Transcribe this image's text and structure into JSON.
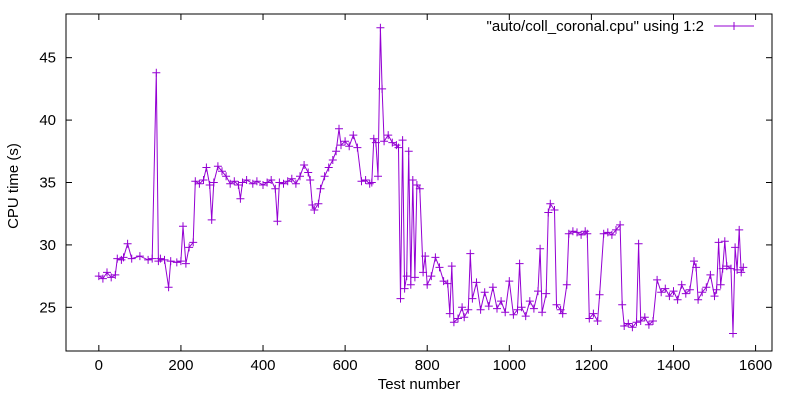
{
  "chart_data": {
    "type": "line",
    "xlabel": "Test number",
    "ylabel": "CPU time (s)",
    "xlim": [
      -80,
      1640
    ],
    "ylim": [
      21.5,
      48.5
    ],
    "xticks": [
      0,
      200,
      400,
      600,
      800,
      1000,
      1200,
      1400,
      1600
    ],
    "yticks": [
      25,
      30,
      35,
      40,
      45
    ],
    "legend_position": "top-right",
    "grid": false,
    "series": [
      {
        "name": "\"auto/coll_coronal.cpu\" using 1:2",
        "color": "#9400d3",
        "marker": "+",
        "points": [
          [
            0,
            27.5
          ],
          [
            10,
            27.3
          ],
          [
            20,
            27.8
          ],
          [
            30,
            27.4
          ],
          [
            40,
            27.6
          ],
          [
            45,
            28.9
          ],
          [
            55,
            28.8
          ],
          [
            60,
            29.0
          ],
          [
            70,
            30.1
          ],
          [
            80,
            28.9
          ],
          [
            100,
            29.1
          ],
          [
            120,
            28.8
          ],
          [
            130,
            28.9
          ],
          [
            140,
            43.8
          ],
          [
            145,
            28.7
          ],
          [
            150,
            28.9
          ],
          [
            160,
            28.8
          ],
          [
            170,
            26.6
          ],
          [
            175,
            28.7
          ],
          [
            190,
            28.6
          ],
          [
            200,
            28.7
          ],
          [
            205,
            31.5
          ],
          [
            212,
            28.5
          ],
          [
            220,
            29.8
          ],
          [
            230,
            30.2
          ],
          [
            235,
            35.1
          ],
          [
            245,
            34.9
          ],
          [
            255,
            35.2
          ],
          [
            262,
            36.2
          ],
          [
            270,
            34.8
          ],
          [
            275,
            32.0
          ],
          [
            280,
            35.0
          ],
          [
            290,
            36.3
          ],
          [
            300,
            35.9
          ],
          [
            310,
            35.5
          ],
          [
            320,
            34.9
          ],
          [
            330,
            35.1
          ],
          [
            340,
            34.8
          ],
          [
            345,
            33.7
          ],
          [
            350,
            35.0
          ],
          [
            360,
            35.2
          ],
          [
            375,
            34.9
          ],
          [
            385,
            35.1
          ],
          [
            400,
            34.8
          ],
          [
            410,
            35.0
          ],
          [
            420,
            35.2
          ],
          [
            430,
            34.5
          ],
          [
            435,
            31.9
          ],
          [
            440,
            35.0
          ],
          [
            450,
            34.9
          ],
          [
            460,
            35.1
          ],
          [
            470,
            35.3
          ],
          [
            480,
            34.9
          ],
          [
            490,
            35.5
          ],
          [
            500,
            36.4
          ],
          [
            510,
            35.8
          ],
          [
            515,
            35.2
          ],
          [
            520,
            33.2
          ],
          [
            525,
            32.8
          ],
          [
            535,
            33.3
          ],
          [
            540,
            34.5
          ],
          [
            550,
            35.5
          ],
          [
            560,
            36.2
          ],
          [
            570,
            36.8
          ],
          [
            578,
            37.5
          ],
          [
            585,
            39.3
          ],
          [
            590,
            38.0
          ],
          [
            600,
            38.3
          ],
          [
            610,
            37.9
          ],
          [
            620,
            38.8
          ],
          [
            630,
            37.8
          ],
          [
            640,
            35.1
          ],
          [
            650,
            35.2
          ],
          [
            660,
            34.9
          ],
          [
            665,
            35.0
          ],
          [
            670,
            38.5
          ],
          [
            675,
            38.2
          ],
          [
            680,
            35.5
          ],
          [
            686,
            47.4
          ],
          [
            690,
            42.5
          ],
          [
            695,
            38.3
          ],
          [
            705,
            38.8
          ],
          [
            715,
            38.2
          ],
          [
            725,
            38.0
          ],
          [
            730,
            37.8
          ],
          [
            735,
            25.7
          ],
          [
            740,
            38.4
          ],
          [
            745,
            26.5
          ],
          [
            750,
            27.5
          ],
          [
            755,
            37.5
          ],
          [
            760,
            26.8
          ],
          [
            765,
            35.2
          ],
          [
            770,
            27.4
          ],
          [
            775,
            34.8
          ],
          [
            782,
            34.5
          ],
          [
            790,
            27.8
          ],
          [
            795,
            29.1
          ],
          [
            800,
            26.8
          ],
          [
            810,
            27.5
          ],
          [
            820,
            29.0
          ],
          [
            830,
            28.2
          ],
          [
            840,
            27.1
          ],
          [
            850,
            26.9
          ],
          [
            855,
            24.5
          ],
          [
            860,
            28.3
          ],
          [
            865,
            23.8
          ],
          [
            875,
            24.1
          ],
          [
            885,
            25.0
          ],
          [
            890,
            24.2
          ],
          [
            900,
            24.8
          ],
          [
            905,
            29.3
          ],
          [
            910,
            25.7
          ],
          [
            920,
            27.0
          ],
          [
            930,
            24.8
          ],
          [
            940,
            26.2
          ],
          [
            950,
            25.1
          ],
          [
            960,
            26.6
          ],
          [
            970,
            24.9
          ],
          [
            980,
            25.5
          ],
          [
            990,
            24.6
          ],
          [
            1000,
            27.1
          ],
          [
            1010,
            24.4
          ],
          [
            1020,
            24.8
          ],
          [
            1025,
            28.5
          ],
          [
            1030,
            25.0
          ],
          [
            1040,
            24.3
          ],
          [
            1050,
            25.5
          ],
          [
            1060,
            24.9
          ],
          [
            1070,
            26.3
          ],
          [
            1075,
            29.7
          ],
          [
            1080,
            24.6
          ],
          [
            1090,
            26.1
          ],
          [
            1095,
            32.6
          ],
          [
            1100,
            33.3
          ],
          [
            1110,
            32.8
          ],
          [
            1115,
            25.2
          ],
          [
            1125,
            24.8
          ],
          [
            1130,
            24.5
          ],
          [
            1140,
            26.8
          ],
          [
            1145,
            30.9
          ],
          [
            1155,
            31.1
          ],
          [
            1165,
            31.0
          ],
          [
            1175,
            30.8
          ],
          [
            1185,
            31.1
          ],
          [
            1190,
            30.9
          ],
          [
            1195,
            24.1
          ],
          [
            1205,
            24.5
          ],
          [
            1215,
            23.9
          ],
          [
            1220,
            26.0
          ],
          [
            1230,
            30.9
          ],
          [
            1240,
            31.0
          ],
          [
            1250,
            30.8
          ],
          [
            1260,
            31.2
          ],
          [
            1270,
            31.6
          ],
          [
            1275,
            25.2
          ],
          [
            1280,
            23.5
          ],
          [
            1290,
            23.7
          ],
          [
            1300,
            23.4
          ],
          [
            1310,
            23.8
          ],
          [
            1315,
            30.1
          ],
          [
            1320,
            23.9
          ],
          [
            1330,
            24.2
          ],
          [
            1340,
            23.6
          ],
          [
            1350,
            23.9
          ],
          [
            1360,
            27.2
          ],
          [
            1370,
            26.2
          ],
          [
            1380,
            26.5
          ],
          [
            1390,
            25.9
          ],
          [
            1400,
            26.3
          ],
          [
            1410,
            25.6
          ],
          [
            1420,
            26.8
          ],
          [
            1430,
            26.1
          ],
          [
            1440,
            26.4
          ],
          [
            1450,
            28.7
          ],
          [
            1455,
            28.2
          ],
          [
            1460,
            25.6
          ],
          [
            1470,
            26.2
          ],
          [
            1480,
            26.6
          ],
          [
            1490,
            27.6
          ],
          [
            1500,
            25.9
          ],
          [
            1505,
            26.4
          ],
          [
            1510,
            30.2
          ],
          [
            1515,
            26.8
          ],
          [
            1520,
            28.1
          ],
          [
            1525,
            30.3
          ],
          [
            1530,
            28.3
          ],
          [
            1540,
            28.1
          ],
          [
            1545,
            22.9
          ],
          [
            1550,
            29.8
          ],
          [
            1555,
            28.0
          ],
          [
            1560,
            31.2
          ],
          [
            1565,
            27.8
          ],
          [
            1570,
            28.2
          ]
        ]
      }
    ]
  }
}
